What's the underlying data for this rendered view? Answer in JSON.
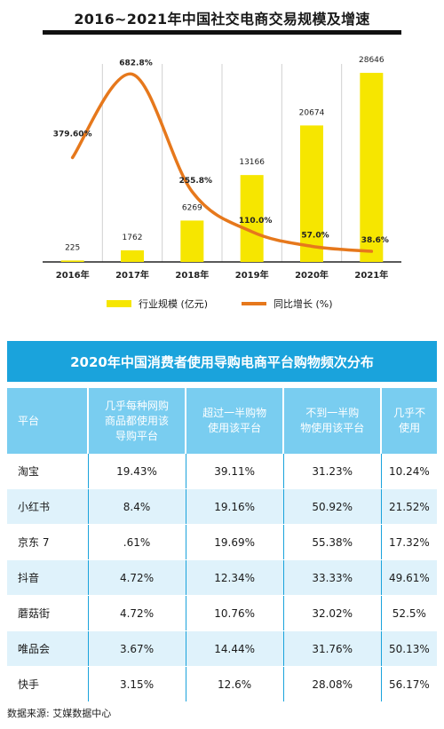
{
  "chart_data": [
    {
      "type": "bar+line",
      "title": "2016~2021年中国社交电商交易规模及增速",
      "categories": [
        "2016年",
        "2017年",
        "2018年",
        "2019年",
        "2020年",
        "2021年"
      ],
      "series": [
        {
          "name": "行业规模 (亿元)",
          "kind": "bar",
          "color": "#f6e600",
          "values": [
            225,
            1762,
            6269,
            13166,
            20674,
            28646
          ],
          "labels": [
            "225",
            "1762",
            "6269",
            "13166",
            "20674",
            "28646"
          ]
        },
        {
          "name": "同比增长 (%)",
          "kind": "line",
          "color": "#e6781c",
          "values": [
            379.6,
            682.8,
            255.8,
            110.0,
            57.0,
            38.6
          ],
          "labels": [
            "379.60%",
            "682.8%",
            "255.8%",
            "110.0%",
            "57.0%",
            "38.6%"
          ]
        }
      ],
      "bar_axis": {
        "range": [
          0,
          30000
        ]
      },
      "line_axis": {
        "range": [
          0,
          720
        ]
      },
      "legend_position": "bottom"
    },
    {
      "type": "table",
      "title": "2020年中国消费者使用导购电商平台购物频次分布",
      "columns": [
        "平台",
        "几乎每种网购\n商品都使用该\n导购平台",
        "超过一半购物\n使用该平台",
        "不到一半购\n物使用该平台",
        "几乎不\n使用"
      ],
      "rows": [
        [
          "淘宝",
          "19.43%",
          "39.11%",
          "31.23%",
          "10.24%"
        ],
        [
          "小红书",
          "8.4%",
          "19.16%",
          "50.92%",
          "21.52%"
        ],
        [
          "京东  7",
          ".61%",
          "19.69%",
          "55.38%",
          "17.32%"
        ],
        [
          "抖音",
          "4.72%",
          "12.34%",
          "33.33%",
          "49.61%"
        ],
        [
          "蘑菇街",
          "4.72%",
          "10.76%",
          "32.02%",
          "52.5%"
        ],
        [
          "唯品会",
          "3.67%",
          "14.44%",
          "31.76%",
          "50.13%"
        ],
        [
          "快手",
          "3.15%",
          "12.6%",
          "28.08%",
          "56.17%"
        ]
      ]
    }
  ],
  "source": "数据来源: 艾媒数据中心"
}
